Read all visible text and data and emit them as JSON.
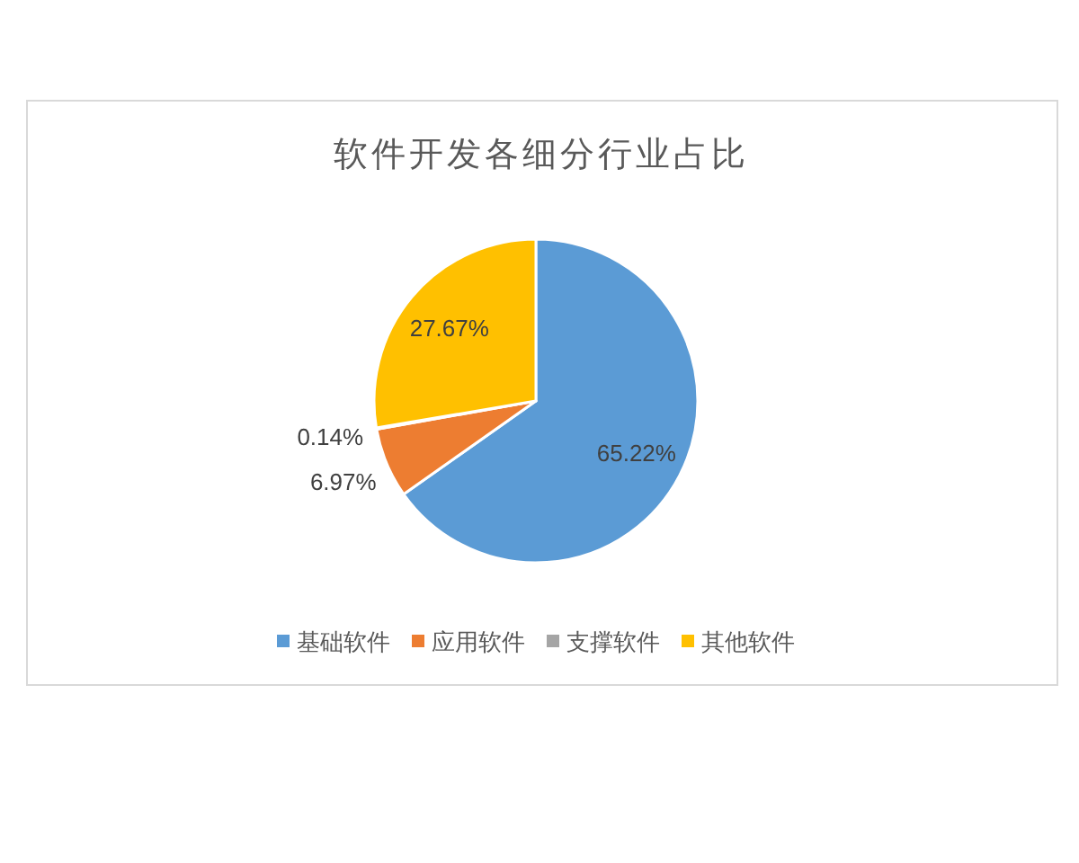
{
  "chart_data": {
    "type": "pie",
    "title": "软件开发各细分行业占比",
    "categories": [
      "基础软件",
      "应用软件",
      "支撑软件",
      "其他软件"
    ],
    "values": [
      65.22,
      6.97,
      0.14,
      27.67
    ],
    "colors": [
      "#5b9bd5",
      "#ed7d31",
      "#a5a5a5",
      "#ffc000"
    ],
    "value_labels": [
      "65.22%",
      "6.97%",
      "0.14%",
      "27.67%"
    ],
    "legend": "bottom"
  }
}
